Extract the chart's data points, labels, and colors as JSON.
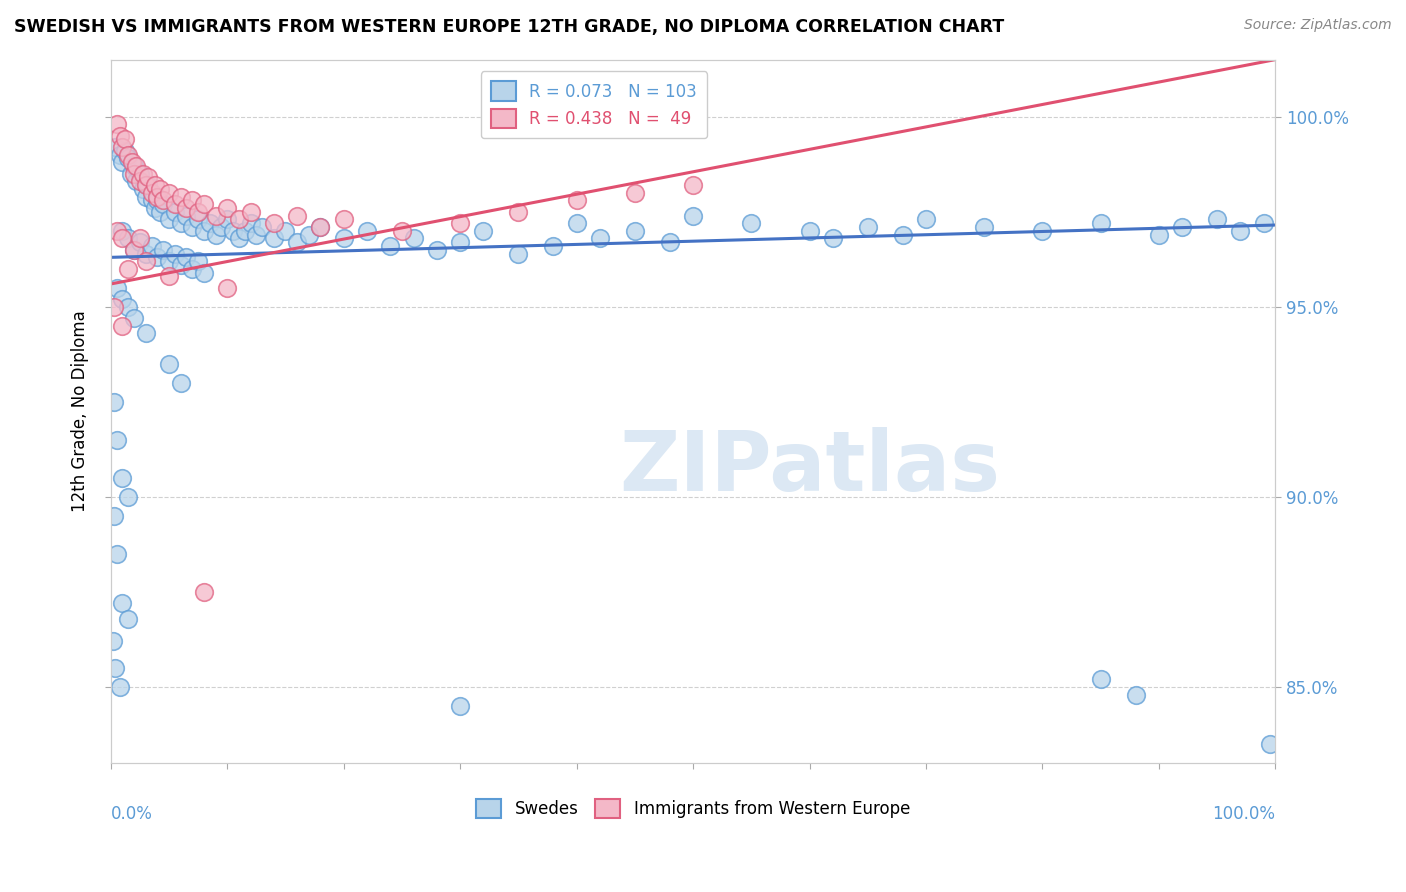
{
  "title": "SWEDISH VS IMMIGRANTS FROM WESTERN EUROPE 12TH GRADE, NO DIPLOMA CORRELATION CHART",
  "source": "Source: ZipAtlas.com",
  "ylabel": "12th Grade, No Diploma",
  "legend_blue_R": 0.073,
  "legend_blue_N": 103,
  "legend_pink_R": 0.438,
  "legend_pink_N": 49,
  "blue_fill": "#b8d4ea",
  "blue_edge": "#5b9bd5",
  "pink_fill": "#f4b8c8",
  "pink_edge": "#e06080",
  "blue_line": "#4472c4",
  "pink_line": "#e05070",
  "axis_color": "#5b9bd5",
  "watermark_color": "#dce8f4",
  "watermark_text": "ZIPatlas",
  "grid_color": "#d0d0d0",
  "xlim": [
    0,
    100
  ],
  "ylim": [
    83.0,
    101.5
  ],
  "yticks": [
    85.0,
    90.0,
    95.0,
    100.0
  ],
  "blue_reg_x0": 0,
  "blue_reg_y0": 96.3,
  "blue_reg_x1": 100,
  "blue_reg_y1": 97.15,
  "pink_reg_x0": 0,
  "pink_reg_y0": 95.6,
  "pink_reg_x1": 100,
  "pink_reg_y1": 101.5,
  "blue_points": [
    [
      0.4,
      99.2
    ],
    [
      0.8,
      99.0
    ],
    [
      1.0,
      98.8
    ],
    [
      1.2,
      99.1
    ],
    [
      1.5,
      98.9
    ],
    [
      1.7,
      98.5
    ],
    [
      2.0,
      98.7
    ],
    [
      2.2,
      98.3
    ],
    [
      2.5,
      98.5
    ],
    [
      2.8,
      98.1
    ],
    [
      3.0,
      97.9
    ],
    [
      3.2,
      98.2
    ],
    [
      3.5,
      97.8
    ],
    [
      3.8,
      97.6
    ],
    [
      4.0,
      97.8
    ],
    [
      4.2,
      97.5
    ],
    [
      4.5,
      97.7
    ],
    [
      5.0,
      97.3
    ],
    [
      5.5,
      97.5
    ],
    [
      6.0,
      97.2
    ],
    [
      6.5,
      97.4
    ],
    [
      7.0,
      97.1
    ],
    [
      7.5,
      97.3
    ],
    [
      8.0,
      97.0
    ],
    [
      8.5,
      97.2
    ],
    [
      9.0,
      96.9
    ],
    [
      9.5,
      97.1
    ],
    [
      10.0,
      97.3
    ],
    [
      10.5,
      97.0
    ],
    [
      11.0,
      96.8
    ],
    [
      11.5,
      97.0
    ],
    [
      12.0,
      97.2
    ],
    [
      12.5,
      96.9
    ],
    [
      13.0,
      97.1
    ],
    [
      14.0,
      96.8
    ],
    [
      15.0,
      97.0
    ],
    [
      16.0,
      96.7
    ],
    [
      17.0,
      96.9
    ],
    [
      18.0,
      97.1
    ],
    [
      20.0,
      96.8
    ],
    [
      22.0,
      97.0
    ],
    [
      24.0,
      96.6
    ],
    [
      26.0,
      96.8
    ],
    [
      28.0,
      96.5
    ],
    [
      30.0,
      96.7
    ],
    [
      32.0,
      97.0
    ],
    [
      35.0,
      96.4
    ],
    [
      38.0,
      96.6
    ],
    [
      40.0,
      97.2
    ],
    [
      42.0,
      96.8
    ],
    [
      45.0,
      97.0
    ],
    [
      48.0,
      96.7
    ],
    [
      50.0,
      97.4
    ],
    [
      55.0,
      97.2
    ],
    [
      60.0,
      97.0
    ],
    [
      62.0,
      96.8
    ],
    [
      65.0,
      97.1
    ],
    [
      68.0,
      96.9
    ],
    [
      70.0,
      97.3
    ],
    [
      75.0,
      97.1
    ],
    [
      80.0,
      97.0
    ],
    [
      85.0,
      97.2
    ],
    [
      90.0,
      96.9
    ],
    [
      92.0,
      97.1
    ],
    [
      95.0,
      97.3
    ],
    [
      97.0,
      97.0
    ],
    [
      99.0,
      97.2
    ],
    [
      1.0,
      97.0
    ],
    [
      1.5,
      96.8
    ],
    [
      2.0,
      96.5
    ],
    [
      2.5,
      96.7
    ],
    [
      3.0,
      96.4
    ],
    [
      3.5,
      96.6
    ],
    [
      4.0,
      96.3
    ],
    [
      4.5,
      96.5
    ],
    [
      5.0,
      96.2
    ],
    [
      5.5,
      96.4
    ],
    [
      6.0,
      96.1
    ],
    [
      6.5,
      96.3
    ],
    [
      7.0,
      96.0
    ],
    [
      7.5,
      96.2
    ],
    [
      8.0,
      95.9
    ],
    [
      0.5,
      95.5
    ],
    [
      1.0,
      95.2
    ],
    [
      1.5,
      95.0
    ],
    [
      2.0,
      94.7
    ],
    [
      3.0,
      94.3
    ],
    [
      5.0,
      93.5
    ],
    [
      6.0,
      93.0
    ],
    [
      0.3,
      92.5
    ],
    [
      0.5,
      91.5
    ],
    [
      1.0,
      90.5
    ],
    [
      1.5,
      90.0
    ],
    [
      0.3,
      89.5
    ],
    [
      0.5,
      88.5
    ],
    [
      1.0,
      87.2
    ],
    [
      1.5,
      86.8
    ],
    [
      0.2,
      86.2
    ],
    [
      0.4,
      85.5
    ],
    [
      0.8,
      85.0
    ],
    [
      30.0,
      84.5
    ],
    [
      85.0,
      85.2
    ],
    [
      88.0,
      84.8
    ],
    [
      99.5,
      83.5
    ]
  ],
  "pink_points": [
    [
      0.5,
      99.8
    ],
    [
      0.8,
      99.5
    ],
    [
      1.0,
      99.2
    ],
    [
      1.2,
      99.4
    ],
    [
      1.5,
      99.0
    ],
    [
      1.8,
      98.8
    ],
    [
      2.0,
      98.5
    ],
    [
      2.2,
      98.7
    ],
    [
      2.5,
      98.3
    ],
    [
      2.8,
      98.5
    ],
    [
      3.0,
      98.2
    ],
    [
      3.2,
      98.4
    ],
    [
      3.5,
      98.0
    ],
    [
      3.8,
      98.2
    ],
    [
      4.0,
      97.9
    ],
    [
      4.2,
      98.1
    ],
    [
      4.5,
      97.8
    ],
    [
      5.0,
      98.0
    ],
    [
      5.5,
      97.7
    ],
    [
      6.0,
      97.9
    ],
    [
      6.5,
      97.6
    ],
    [
      7.0,
      97.8
    ],
    [
      7.5,
      97.5
    ],
    [
      8.0,
      97.7
    ],
    [
      9.0,
      97.4
    ],
    [
      10.0,
      97.6
    ],
    [
      11.0,
      97.3
    ],
    [
      12.0,
      97.5
    ],
    [
      14.0,
      97.2
    ],
    [
      16.0,
      97.4
    ],
    [
      18.0,
      97.1
    ],
    [
      20.0,
      97.3
    ],
    [
      25.0,
      97.0
    ],
    [
      30.0,
      97.2
    ],
    [
      35.0,
      97.5
    ],
    [
      40.0,
      97.8
    ],
    [
      45.0,
      98.0
    ],
    [
      50.0,
      98.2
    ],
    [
      0.5,
      97.0
    ],
    [
      1.0,
      96.8
    ],
    [
      2.0,
      96.5
    ],
    [
      3.0,
      96.2
    ],
    [
      5.0,
      95.8
    ],
    [
      10.0,
      95.5
    ],
    [
      0.3,
      95.0
    ],
    [
      1.0,
      94.5
    ],
    [
      8.0,
      87.5
    ],
    [
      1.5,
      96.0
    ],
    [
      2.5,
      96.8
    ]
  ]
}
